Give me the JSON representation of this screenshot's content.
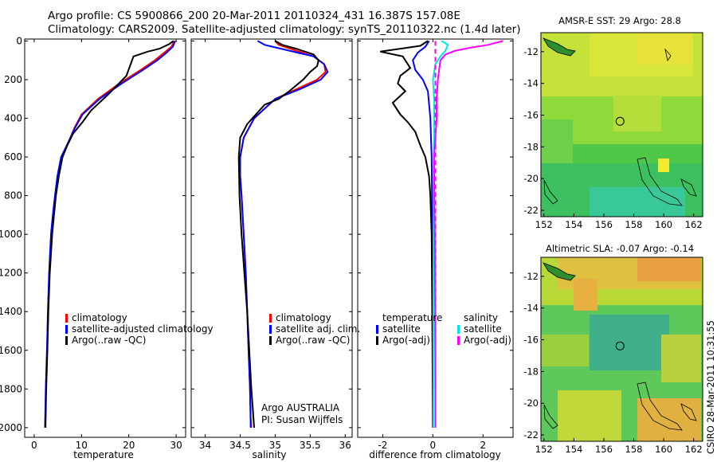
{
  "header": {
    "line1": "Argo profile: CS 5900866_200 20-Mar-2011 20110324_431 16.387S 157.08E",
    "line2": "Climatology: CARS2009. Satellite-adjusted climatology: synTS_20110322.nc (1.4d later)"
  },
  "footer": {
    "side_stamp": "CSIRO 28-Mar-2011 10:31:55"
  },
  "colors": {
    "climatology": "#ff0000",
    "satellite": "#0000ff",
    "argo": "#000000",
    "sal_satellite": "#00e5e5",
    "sal_argo": "#ff00ff"
  },
  "chart_data": [
    {
      "id": "temperature",
      "type": "line",
      "xlabel": "temperature",
      "ylabel": "",
      "xlim": [
        -2,
        32
      ],
      "ylim": [
        2050,
        -10
      ],
      "xticks": [
        "0",
        "10",
        "20",
        "30"
      ],
      "xtick_values": [
        0,
        10,
        20,
        30
      ],
      "yticks": [
        "0",
        "200",
        "400",
        "600",
        "800",
        "1000",
        "1200",
        "1400",
        "1600",
        "1800",
        "2000"
      ],
      "ytick_values": [
        0,
        200,
        400,
        600,
        800,
        1000,
        1200,
        1400,
        1600,
        1800,
        2000
      ],
      "legend": [
        "climatology",
        "satellite-adjusted climatology",
        "Argo(..raw -QC)"
      ],
      "series": [
        {
          "name": "climatology",
          "color": "#ff0000",
          "x": [
            29.6,
            29.0,
            27.5,
            25.5,
            22.5,
            18.0,
            13.5,
            10.0,
            8.5,
            7.3,
            5.8,
            5.0,
            4.5,
            4.0,
            3.6,
            3.2,
            2.95,
            2.75,
            2.5,
            2.35
          ],
          "y": [
            0,
            30,
            60,
            100,
            150,
            220,
            300,
            380,
            450,
            520,
            600,
            700,
            800,
            900,
            1000,
            1200,
            1400,
            1600,
            1800,
            2000
          ]
        },
        {
          "name": "satellite-adjusted climatology",
          "color": "#0000ff",
          "x": [
            29.8,
            29.3,
            28.0,
            26.0,
            23.0,
            18.5,
            13.8,
            10.2,
            8.6,
            7.3,
            5.7,
            4.9,
            4.4,
            3.95,
            3.55,
            3.15,
            2.9,
            2.7,
            2.45,
            2.3
          ],
          "y": [
            0,
            30,
            60,
            100,
            150,
            220,
            300,
            380,
            450,
            520,
            600,
            700,
            800,
            900,
            1000,
            1200,
            1400,
            1600,
            1800,
            2000
          ]
        },
        {
          "name": "Argo(..raw -QC)",
          "color": "#000000",
          "x": [
            29.4,
            28.6,
            26.5,
            24.0,
            21.0,
            19.5,
            15.5,
            12.0,
            10.2,
            8.2,
            7.0,
            6.0,
            5.2,
            4.6,
            4.2,
            3.8,
            3.3,
            3.0,
            2.8,
            2.55,
            2.4
          ],
          "y": [
            0,
            15,
            40,
            55,
            80,
            180,
            280,
            360,
            420,
            480,
            540,
            600,
            700,
            800,
            900,
            1000,
            1200,
            1400,
            1600,
            1800,
            2000
          ]
        }
      ]
    },
    {
      "id": "salinity",
      "type": "line",
      "xlabel": "salinity",
      "ylabel": "",
      "xlim": [
        33.8,
        36.1
      ],
      "ylim": [
        2050,
        -10
      ],
      "xticks": [
        "34",
        "34.5",
        "35",
        "35.5",
        "36"
      ],
      "xtick_values": [
        34,
        34.5,
        35,
        35.5,
        36
      ],
      "legend": [
        "climatology",
        "satellite adj. clim.",
        "Argo(..raw -QC)"
      ],
      "annotation": [
        "Argo AUSTRALIA",
        "PI: Susan Wijffels"
      ],
      "series": [
        {
          "name": "climatology",
          "color": "#ff0000",
          "x": [
            35.0,
            35.05,
            35.3,
            35.55,
            35.7,
            35.72,
            35.6,
            35.3,
            35.0,
            34.7,
            34.55,
            34.5,
            34.5,
            34.52,
            34.55,
            34.58,
            34.6,
            34.62,
            34.64,
            34.65,
            34.66
          ],
          "y": [
            0,
            20,
            50,
            80,
            120,
            160,
            200,
            250,
            300,
            400,
            500,
            600,
            700,
            800,
            1000,
            1200,
            1400,
            1600,
            1800,
            1950,
            2000
          ]
        },
        {
          "name": "satellite adj. clim.",
          "color": "#0000ff",
          "x": [
            34.75,
            34.85,
            35.2,
            35.55,
            35.7,
            35.75,
            35.65,
            35.35,
            35.0,
            34.7,
            34.55,
            34.5,
            34.5,
            34.52,
            34.55,
            34.58,
            34.6,
            34.62,
            34.64,
            34.65
          ],
          "y": [
            0,
            20,
            50,
            80,
            120,
            160,
            200,
            250,
            300,
            400,
            500,
            600,
            700,
            800,
            1000,
            1200,
            1400,
            1600,
            1800,
            2000
          ]
        },
        {
          "name": "Argo(..raw -QC)",
          "color": "#000000",
          "x": [
            35.0,
            35.1,
            35.3,
            35.55,
            35.62,
            35.6,
            35.5,
            35.4,
            35.2,
            35.05,
            34.85,
            34.75,
            34.6,
            34.5,
            34.48,
            34.49,
            34.52,
            34.56,
            34.6,
            34.63,
            34.66,
            34.68,
            34.7
          ],
          "y": [
            0,
            20,
            40,
            70,
            100,
            130,
            160,
            200,
            260,
            300,
            330,
            370,
            430,
            500,
            600,
            800,
            1000,
            1200,
            1400,
            1600,
            1800,
            1900,
            2000
          ]
        }
      ]
    },
    {
      "id": "difference",
      "type": "line",
      "xlabel": "difference from climatology",
      "ylabel": "",
      "xlim": [
        -3.0,
        3.2
      ],
      "ylim": [
        2050,
        -10
      ],
      "xticks": [
        "-2",
        "0",
        "2"
      ],
      "xtick_values": [
        -2,
        0,
        2
      ],
      "legend_left_title": "temperature",
      "legend_right_title": "salinity",
      "legend_left": [
        "satellite",
        "Argo(-adj)"
      ],
      "legend_right": [
        "satellite",
        "Argo(-adj)"
      ],
      "series": [
        {
          "name": "temperature satellite",
          "color": "#0000ff",
          "x": [
            -0.15,
            -0.3,
            -0.6,
            -0.8,
            -0.7,
            -0.4,
            -0.2,
            -0.1,
            -0.05,
            -0.02,
            0.0,
            0.0
          ],
          "y": [
            0,
            30,
            60,
            100,
            150,
            200,
            260,
            400,
            600,
            1000,
            1500,
            2000
          ]
        },
        {
          "name": "temperature Argo(-adj)",
          "color": "#000000",
          "x": [
            -0.2,
            -0.5,
            -2.1,
            -1.2,
            -0.9,
            -1.3,
            -1.4,
            -1.1,
            -1.6,
            -1.3,
            -1.0,
            -0.7,
            -0.5,
            -0.3,
            -0.15,
            -0.1,
            -0.05,
            -0.02,
            0.0
          ],
          "y": [
            0,
            25,
            55,
            80,
            140,
            180,
            220,
            260,
            320,
            380,
            420,
            470,
            540,
            600,
            700,
            800,
            1000,
            1500,
            2000
          ]
        },
        {
          "name": "salinity satellite",
          "color": "#00e5e5",
          "x": [
            0.35,
            0.6,
            0.5,
            0.3,
            0.1,
            0.0,
            0.05,
            0.05,
            0.03,
            0.02,
            0.02
          ],
          "y": [
            0,
            20,
            50,
            80,
            120,
            200,
            300,
            500,
            800,
            1400,
            2000
          ]
        },
        {
          "name": "salinity Argo(-adj)",
          "color": "#ff00ff",
          "x": [
            2.8,
            2.2,
            1.5,
            0.9,
            0.5,
            0.3,
            0.25,
            0.2,
            0.15,
            0.15,
            0.1,
            0.05,
            0.06,
            0.08,
            0.09,
            0.1,
            0.1
          ],
          "y": [
            0,
            20,
            35,
            50,
            70,
            100,
            150,
            200,
            300,
            400,
            500,
            600,
            800,
            1000,
            1400,
            1800,
            2000
          ]
        }
      ]
    },
    {
      "id": "sst-map",
      "type": "heatmap",
      "title": "AMSR-E SST: 29 Argo: 28.8",
      "xlim": [
        151.8,
        162.6
      ],
      "ylim": [
        -22.4,
        -10.8
      ],
      "xticks": [
        "152",
        "154",
        "156",
        "158",
        "160",
        "162"
      ],
      "xtick_values": [
        152,
        154,
        156,
        158,
        160,
        162
      ],
      "yticks": [
        "-12",
        "-14",
        "-16",
        "-18",
        "-20",
        "-22"
      ],
      "ytick_values": [
        -12,
        -14,
        -16,
        -18,
        -20,
        -22
      ],
      "argo_position": {
        "lon": 157.08,
        "lat": -16.387
      }
    },
    {
      "id": "sla-map",
      "type": "heatmap",
      "title": "Altimetric SLA: -0.07 Argo: -0.14",
      "xlim": [
        151.8,
        162.6
      ],
      "ylim": [
        -22.4,
        -10.8
      ],
      "xticks": [
        "152",
        "154",
        "156",
        "158",
        "160",
        "162"
      ],
      "xtick_values": [
        152,
        154,
        156,
        158,
        160,
        162
      ],
      "yticks": [
        "-12",
        "-14",
        "-16",
        "-18",
        "-20",
        "-22"
      ],
      "ytick_values": [
        -12,
        -14,
        -16,
        -18,
        -20,
        -22
      ],
      "argo_position": {
        "lon": 157.08,
        "lat": -16.387
      }
    }
  ]
}
